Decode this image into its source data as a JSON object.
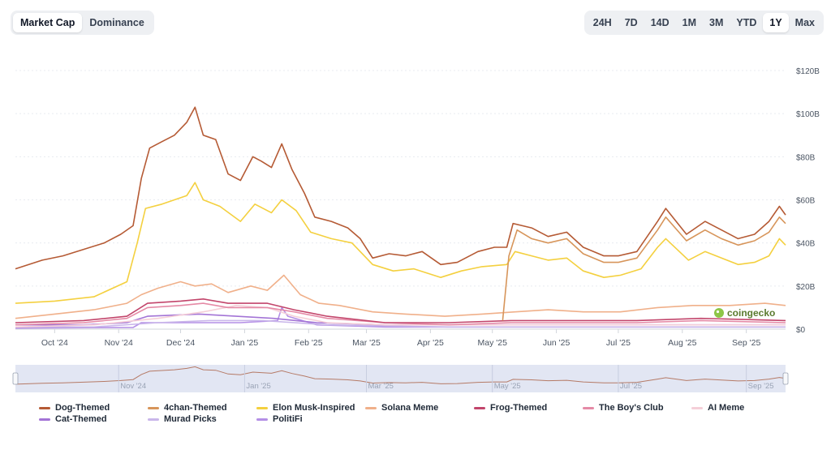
{
  "toggle": {
    "tabs": [
      {
        "label": "Market Cap",
        "active": true
      },
      {
        "label": "Dominance",
        "active": false
      }
    ]
  },
  "ranges": {
    "items": [
      "24H",
      "7D",
      "14D",
      "1M",
      "3M",
      "YTD",
      "1Y",
      "Max"
    ],
    "active": "1Y"
  },
  "watermark": {
    "text": "coingecko",
    "color": "#8dc647"
  },
  "chart_data": {
    "type": "line",
    "title": "",
    "xlabel": "",
    "ylabel": "",
    "x_ticks": [
      "Oct '24",
      "Nov '24",
      "Dec '24",
      "Jan '25",
      "Feb '25",
      "Mar '25",
      "Apr '25",
      "May '25",
      "Jun '25",
      "Jul '25",
      "Aug '25",
      "Sep '25"
    ],
    "y_ticks": [
      "$0",
      "$20B",
      "$40B",
      "$60B",
      "$80B",
      "$100B",
      "$120B"
    ],
    "ylim": [
      0,
      120
    ],
    "y_unit": "billion USD",
    "grid": true,
    "legend_position": "bottom",
    "navigator_ticks": [
      "Nov '24",
      "Jan '25",
      "Mar '25",
      "May '25",
      "Jul '25",
      "Sep '25"
    ],
    "series": [
      {
        "name": "Dog-Themed",
        "color": "#b55a34",
        "points": [
          [
            "2024-09-12",
            28
          ],
          [
            "2024-09-25",
            32
          ],
          [
            "2024-10-05",
            34
          ],
          [
            "2024-10-15",
            37
          ],
          [
            "2024-10-25",
            40
          ],
          [
            "2024-11-02",
            44
          ],
          [
            "2024-11-08",
            48
          ],
          [
            "2024-11-12",
            70
          ],
          [
            "2024-11-16",
            84
          ],
          [
            "2024-11-22",
            87
          ],
          [
            "2024-11-28",
            90
          ],
          [
            "2024-12-04",
            96
          ],
          [
            "2024-12-08",
            103
          ],
          [
            "2024-12-12",
            90
          ],
          [
            "2024-12-18",
            88
          ],
          [
            "2024-12-24",
            72
          ],
          [
            "2024-12-30",
            69
          ],
          [
            "2025-01-05",
            80
          ],
          [
            "2025-01-09",
            78
          ],
          [
            "2025-01-14",
            75
          ],
          [
            "2025-01-19",
            86
          ],
          [
            "2025-01-24",
            74
          ],
          [
            "2025-01-30",
            63
          ],
          [
            "2025-02-04",
            52
          ],
          [
            "2025-02-12",
            50
          ],
          [
            "2025-02-20",
            47
          ],
          [
            "2025-02-26",
            42
          ],
          [
            "2025-03-04",
            33
          ],
          [
            "2025-03-12",
            35
          ],
          [
            "2025-03-20",
            34
          ],
          [
            "2025-03-28",
            36
          ],
          [
            "2025-04-06",
            30
          ],
          [
            "2025-04-14",
            31
          ],
          [
            "2025-04-24",
            36
          ],
          [
            "2025-05-02",
            38
          ],
          [
            "2025-05-08",
            38
          ],
          [
            "2025-05-11",
            49
          ],
          [
            "2025-05-20",
            47
          ],
          [
            "2025-05-28",
            43
          ],
          [
            "2025-06-06",
            45
          ],
          [
            "2025-06-14",
            38
          ],
          [
            "2025-06-24",
            34
          ],
          [
            "2025-07-01",
            34
          ],
          [
            "2025-07-10",
            36
          ],
          [
            "2025-07-20",
            50
          ],
          [
            "2025-07-24",
            56
          ],
          [
            "2025-08-03",
            44
          ],
          [
            "2025-08-12",
            50
          ],
          [
            "2025-08-20",
            46
          ],
          [
            "2025-08-28",
            42
          ],
          [
            "2025-09-05",
            44
          ],
          [
            "2025-09-12",
            50
          ],
          [
            "2025-09-17",
            57
          ],
          [
            "2025-09-20",
            53
          ]
        ]
      },
      {
        "name": "4chan-Themed",
        "color": "#d7955a",
        "points": [
          [
            "2025-05-06",
            4
          ],
          [
            "2025-05-09",
            34
          ],
          [
            "2025-05-13",
            46
          ],
          [
            "2025-05-20",
            42
          ],
          [
            "2025-05-28",
            40
          ],
          [
            "2025-06-06",
            42
          ],
          [
            "2025-06-14",
            35
          ],
          [
            "2025-06-24",
            31
          ],
          [
            "2025-07-01",
            31
          ],
          [
            "2025-07-10",
            33
          ],
          [
            "2025-07-20",
            46
          ],
          [
            "2025-07-24",
            52
          ],
          [
            "2025-08-03",
            41
          ],
          [
            "2025-08-12",
            46
          ],
          [
            "2025-08-20",
            42
          ],
          [
            "2025-08-28",
            39
          ],
          [
            "2025-09-05",
            41
          ],
          [
            "2025-09-12",
            45
          ],
          [
            "2025-09-17",
            52
          ],
          [
            "2025-09-20",
            49
          ]
        ]
      },
      {
        "name": "Elon Musk-Inspired",
        "color": "#f4d03f",
        "points": [
          [
            "2024-09-12",
            12
          ],
          [
            "2024-10-01",
            13
          ],
          [
            "2024-10-20",
            15
          ],
          [
            "2024-11-05",
            22
          ],
          [
            "2024-11-10",
            40
          ],
          [
            "2024-11-14",
            56
          ],
          [
            "2024-11-22",
            58
          ],
          [
            "2024-12-04",
            62
          ],
          [
            "2024-12-08",
            68
          ],
          [
            "2024-12-12",
            60
          ],
          [
            "2024-12-20",
            57
          ],
          [
            "2024-12-30",
            50
          ],
          [
            "2025-01-06",
            58
          ],
          [
            "2025-01-14",
            54
          ],
          [
            "2025-01-19",
            60
          ],
          [
            "2025-01-26",
            55
          ],
          [
            "2025-02-02",
            45
          ],
          [
            "2025-02-12",
            42
          ],
          [
            "2025-02-22",
            40
          ],
          [
            "2025-03-04",
            30
          ],
          [
            "2025-03-14",
            27
          ],
          [
            "2025-03-24",
            28
          ],
          [
            "2025-04-06",
            24
          ],
          [
            "2025-04-16",
            27
          ],
          [
            "2025-04-26",
            29
          ],
          [
            "2025-05-08",
            30
          ],
          [
            "2025-05-12",
            36
          ],
          [
            "2025-05-20",
            34
          ],
          [
            "2025-05-28",
            32
          ],
          [
            "2025-06-06",
            33
          ],
          [
            "2025-06-14",
            27
          ],
          [
            "2025-06-24",
            24
          ],
          [
            "2025-07-02",
            25
          ],
          [
            "2025-07-12",
            28
          ],
          [
            "2025-07-20",
            38
          ],
          [
            "2025-07-24",
            42
          ],
          [
            "2025-08-04",
            32
          ],
          [
            "2025-08-12",
            36
          ],
          [
            "2025-08-20",
            33
          ],
          [
            "2025-08-28",
            30
          ],
          [
            "2025-09-05",
            31
          ],
          [
            "2025-09-12",
            34
          ],
          [
            "2025-09-17",
            42
          ],
          [
            "2025-09-20",
            39
          ]
        ]
      },
      {
        "name": "Solana Meme",
        "color": "#f0b08a",
        "points": [
          [
            "2024-09-12",
            5
          ],
          [
            "2024-10-01",
            7
          ],
          [
            "2024-10-20",
            9
          ],
          [
            "2024-11-05",
            12
          ],
          [
            "2024-11-12",
            16
          ],
          [
            "2024-11-20",
            19
          ],
          [
            "2024-12-01",
            22
          ],
          [
            "2024-12-08",
            20
          ],
          [
            "2024-12-16",
            21
          ],
          [
            "2024-12-24",
            17
          ],
          [
            "2025-01-04",
            20
          ],
          [
            "2025-01-12",
            18
          ],
          [
            "2025-01-20",
            25
          ],
          [
            "2025-01-28",
            16
          ],
          [
            "2025-02-06",
            12
          ],
          [
            "2025-02-16",
            11
          ],
          [
            "2025-03-04",
            8
          ],
          [
            "2025-03-20",
            7
          ],
          [
            "2025-04-08",
            6
          ],
          [
            "2025-04-26",
            7
          ],
          [
            "2025-05-12",
            8
          ],
          [
            "2025-05-28",
            9
          ],
          [
            "2025-06-14",
            8
          ],
          [
            "2025-07-02",
            8
          ],
          [
            "2025-07-20",
            10
          ],
          [
            "2025-08-06",
            11
          ],
          [
            "2025-08-24",
            11
          ],
          [
            "2025-09-10",
            12
          ],
          [
            "2025-09-20",
            11
          ]
        ]
      },
      {
        "name": "Frog-Themed",
        "color": "#c2456b",
        "points": [
          [
            "2024-09-12",
            3
          ],
          [
            "2024-10-15",
            4
          ],
          [
            "2024-11-05",
            6
          ],
          [
            "2024-11-15",
            12
          ],
          [
            "2024-12-01",
            13
          ],
          [
            "2024-12-12",
            14
          ],
          [
            "2024-12-24",
            12
          ],
          [
            "2025-01-12",
            12
          ],
          [
            "2025-01-25",
            9
          ],
          [
            "2025-02-10",
            6
          ],
          [
            "2025-03-10",
            3
          ],
          [
            "2025-04-10",
            3
          ],
          [
            "2025-05-10",
            4
          ],
          [
            "2025-06-10",
            4
          ],
          [
            "2025-07-10",
            4
          ],
          [
            "2025-08-10",
            5
          ],
          [
            "2025-09-20",
            4
          ]
        ]
      },
      {
        "name": "The Boy's Club",
        "color": "#e58aa6",
        "points": [
          [
            "2024-09-12",
            2
          ],
          [
            "2024-10-15",
            3
          ],
          [
            "2024-11-05",
            5
          ],
          [
            "2024-11-15",
            10
          ],
          [
            "2024-12-01",
            11
          ],
          [
            "2024-12-12",
            12
          ],
          [
            "2024-12-24",
            10
          ],
          [
            "2025-01-12",
            10
          ],
          [
            "2025-01-25",
            8
          ],
          [
            "2025-02-10",
            5
          ],
          [
            "2025-03-10",
            3
          ],
          [
            "2025-04-10",
            2
          ],
          [
            "2025-05-10",
            3
          ],
          [
            "2025-06-10",
            3
          ],
          [
            "2025-07-10",
            3
          ],
          [
            "2025-08-10",
            4
          ],
          [
            "2025-09-20",
            3
          ]
        ]
      },
      {
        "name": "AI Meme",
        "color": "#f5cfd8",
        "points": [
          [
            "2024-09-12",
            1
          ],
          [
            "2024-10-20",
            2
          ],
          [
            "2024-11-20",
            5
          ],
          [
            "2024-12-12",
            8
          ],
          [
            "2024-12-28",
            11
          ],
          [
            "2025-01-12",
            10
          ],
          [
            "2025-01-25",
            6
          ],
          [
            "2025-02-10",
            3
          ],
          [
            "2025-03-10",
            2
          ],
          [
            "2025-05-10",
            2
          ],
          [
            "2025-07-10",
            2
          ],
          [
            "2025-09-20",
            2
          ]
        ]
      },
      {
        "name": "Cat-Themed",
        "color": "#a374d6",
        "points": [
          [
            "2024-09-12",
            2
          ],
          [
            "2024-10-15",
            2
          ],
          [
            "2024-11-05",
            3
          ],
          [
            "2024-11-15",
            6
          ],
          [
            "2024-12-10",
            7
          ],
          [
            "2024-12-28",
            6
          ],
          [
            "2025-01-15",
            5
          ],
          [
            "2025-02-05",
            3
          ],
          [
            "2025-03-10",
            2
          ],
          [
            "2025-05-10",
            2
          ],
          [
            "2025-07-10",
            2
          ],
          [
            "2025-09-20",
            2
          ]
        ]
      },
      {
        "name": "Murad Picks",
        "color": "#c9b6ea",
        "points": [
          [
            "2024-09-12",
            1
          ],
          [
            "2024-10-20",
            1
          ],
          [
            "2024-11-20",
            3
          ],
          [
            "2024-12-15",
            4
          ],
          [
            "2025-01-10",
            4
          ],
          [
            "2025-01-25",
            3
          ],
          [
            "2025-02-10",
            2
          ],
          [
            "2025-04-10",
            1
          ],
          [
            "2025-06-10",
            1
          ],
          [
            "2025-08-10",
            1
          ],
          [
            "2025-09-20",
            1
          ]
        ]
      },
      {
        "name": "PolitiFi",
        "color": "#b48fe6",
        "points": [
          [
            "2024-09-12",
            0.5
          ],
          [
            "2024-11-08",
            0.8
          ],
          [
            "2024-11-12",
            3
          ],
          [
            "2024-12-30",
            3
          ],
          [
            "2025-01-17",
            4
          ],
          [
            "2025-01-19",
            10
          ],
          [
            "2025-01-22",
            6
          ],
          [
            "2025-02-05",
            2
          ],
          [
            "2025-03-10",
            1
          ],
          [
            "2025-06-10",
            1
          ],
          [
            "2025-09-20",
            1
          ]
        ]
      }
    ]
  }
}
